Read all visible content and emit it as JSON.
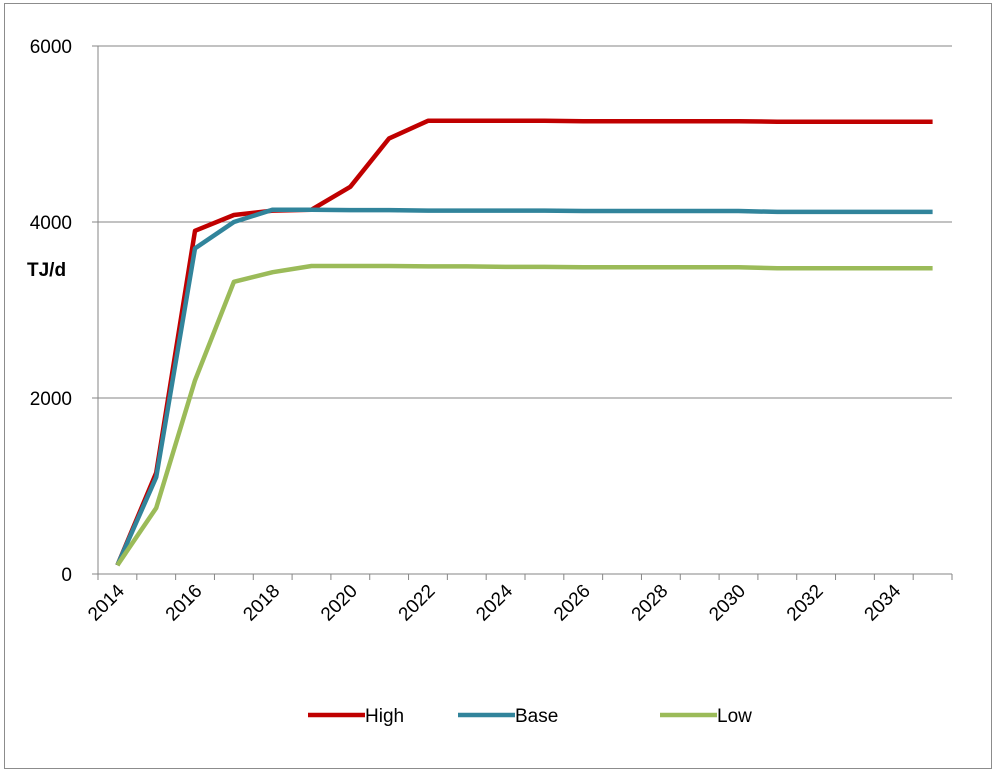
{
  "chart_data": {
    "type": "line",
    "title": "",
    "xlabel": "",
    "ylabel": "TJ/d",
    "ylim": [
      0,
      6000
    ],
    "yticks": [
      0,
      2000,
      4000,
      6000
    ],
    "xlim": [
      2014,
      2036
    ],
    "xticks": [
      "2014",
      "2016",
      "2018",
      "2020",
      "2022",
      "2024",
      "2026",
      "2028",
      "2030",
      "2032",
      "2034"
    ],
    "grid": "horizontal",
    "legend_position": "bottom",
    "x": [
      2014.5,
      2015.5,
      2016.5,
      2017.5,
      2018.5,
      2019.5,
      2020.5,
      2021.5,
      2022.5,
      2023.5,
      2024.5,
      2025.5,
      2026.5,
      2027.5,
      2028.5,
      2029.5,
      2030.5,
      2031.5,
      2032.5,
      2033.5,
      2034.5,
      2035.5
    ],
    "series": [
      {
        "name": "High",
        "color": "#c00000",
        "values": [
          100,
          1150,
          3900,
          4080,
          4130,
          4140,
          4400,
          4950,
          5150,
          5150,
          5150,
          5150,
          5145,
          5145,
          5145,
          5145,
          5145,
          5140,
          5140,
          5140,
          5140,
          5140
        ]
      },
      {
        "name": "Base",
        "color": "#31849b",
        "values": [
          100,
          1100,
          3700,
          4000,
          4140,
          4140,
          4135,
          4135,
          4130,
          4130,
          4130,
          4130,
          4125,
          4125,
          4125,
          4125,
          4125,
          4115,
          4115,
          4115,
          4115,
          4115
        ]
      },
      {
        "name": "Low",
        "color": "#9bbb59",
        "values": [
          100,
          750,
          2200,
          3320,
          3430,
          3500,
          3500,
          3500,
          3495,
          3495,
          3490,
          3490,
          3485,
          3485,
          3485,
          3485,
          3485,
          3475,
          3475,
          3475,
          3475,
          3475
        ]
      }
    ]
  }
}
